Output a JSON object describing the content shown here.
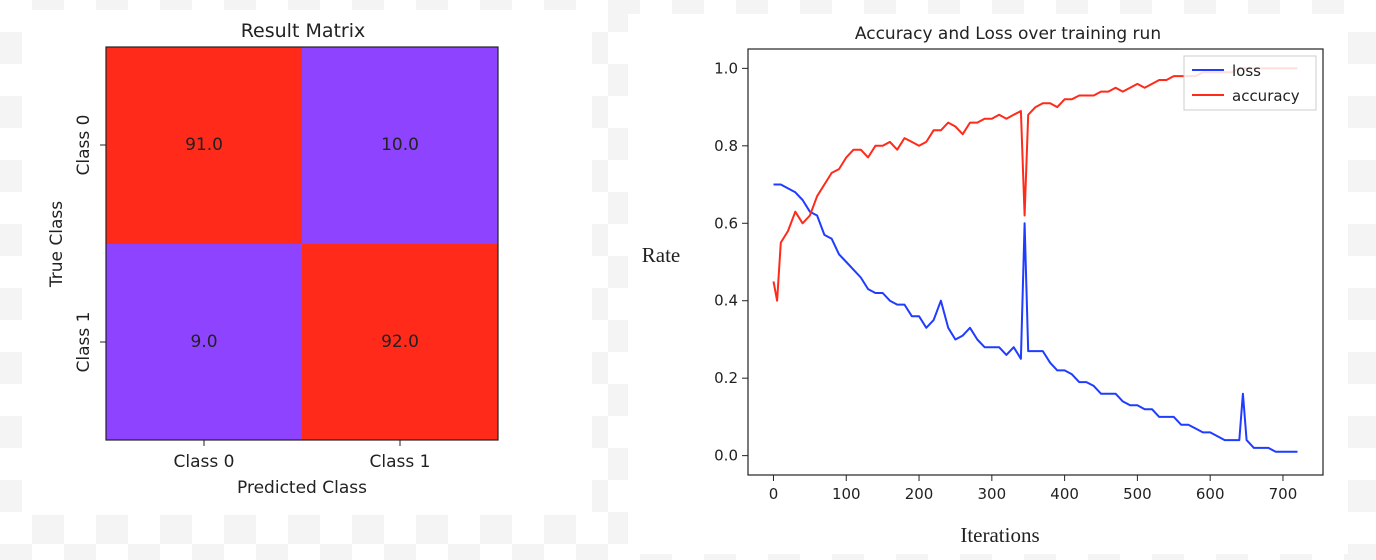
{
  "confusion_matrix": {
    "title": "Result Matrix",
    "xlabel": "Predicted Class",
    "ylabel": "True Class",
    "col_labels": [
      "Class 0",
      "Class 1"
    ],
    "row_labels": [
      "Class 0",
      "Class 1"
    ],
    "cells": [
      [
        "91.0",
        "10.0"
      ],
      [
        "9.0",
        "92.0"
      ]
    ],
    "colors": {
      "high": "#ff2a1a",
      "low": "#8e44ff"
    }
  },
  "chart_data": {
    "type": "line",
    "title": "Accuracy and Loss over training run",
    "xlabel": "Iterations",
    "ylabel": "Rate",
    "xlim": [
      -35,
      755
    ],
    "ylim": [
      -0.05,
      1.05
    ],
    "xticks": [
      "0",
      "100",
      "200",
      "300",
      "400",
      "500",
      "600",
      "700"
    ],
    "yticks": [
      "0.0",
      "0.2",
      "0.4",
      "0.6",
      "0.8",
      "1.0"
    ],
    "legend": {
      "position": "top-right",
      "items": [
        "loss",
        "accuracy"
      ]
    },
    "series": [
      {
        "name": "loss",
        "color": "#1f3cff",
        "x": [
          0,
          10,
          20,
          30,
          40,
          50,
          60,
          70,
          80,
          90,
          100,
          110,
          120,
          130,
          140,
          150,
          160,
          170,
          180,
          190,
          200,
          210,
          220,
          230,
          240,
          250,
          260,
          270,
          280,
          290,
          300,
          310,
          320,
          330,
          340,
          345,
          350,
          360,
          370,
          380,
          390,
          400,
          410,
          420,
          430,
          440,
          450,
          460,
          470,
          480,
          490,
          500,
          510,
          520,
          530,
          540,
          550,
          560,
          570,
          580,
          590,
          600,
          610,
          620,
          630,
          640,
          645,
          650,
          660,
          670,
          680,
          690,
          700,
          710,
          720
        ],
        "y": [
          0.7,
          0.7,
          0.69,
          0.68,
          0.66,
          0.63,
          0.62,
          0.57,
          0.56,
          0.52,
          0.5,
          0.48,
          0.46,
          0.43,
          0.42,
          0.42,
          0.4,
          0.39,
          0.39,
          0.36,
          0.36,
          0.33,
          0.35,
          0.4,
          0.33,
          0.3,
          0.31,
          0.33,
          0.3,
          0.28,
          0.28,
          0.28,
          0.26,
          0.28,
          0.25,
          0.6,
          0.27,
          0.27,
          0.27,
          0.24,
          0.22,
          0.22,
          0.21,
          0.19,
          0.19,
          0.18,
          0.16,
          0.16,
          0.16,
          0.14,
          0.13,
          0.13,
          0.12,
          0.12,
          0.1,
          0.1,
          0.1,
          0.08,
          0.08,
          0.07,
          0.06,
          0.06,
          0.05,
          0.04,
          0.04,
          0.04,
          0.16,
          0.04,
          0.02,
          0.02,
          0.02,
          0.01,
          0.01,
          0.01,
          0.01
        ]
      },
      {
        "name": "accuracy",
        "color": "#ff2a1a",
        "x": [
          0,
          5,
          10,
          20,
          30,
          40,
          50,
          60,
          70,
          80,
          90,
          100,
          110,
          120,
          130,
          140,
          150,
          160,
          170,
          180,
          190,
          200,
          210,
          220,
          230,
          240,
          250,
          260,
          270,
          280,
          290,
          300,
          310,
          320,
          330,
          340,
          345,
          350,
          360,
          370,
          380,
          390,
          400,
          410,
          420,
          430,
          440,
          450,
          460,
          470,
          480,
          490,
          500,
          510,
          520,
          530,
          540,
          550,
          560,
          570,
          580,
          590,
          600,
          610,
          620,
          630,
          640,
          650,
          660,
          670,
          680,
          690,
          700,
          710,
          720
        ],
        "y": [
          0.45,
          0.4,
          0.55,
          0.58,
          0.63,
          0.6,
          0.62,
          0.67,
          0.7,
          0.73,
          0.74,
          0.77,
          0.79,
          0.79,
          0.77,
          0.8,
          0.8,
          0.81,
          0.79,
          0.82,
          0.81,
          0.8,
          0.81,
          0.84,
          0.84,
          0.86,
          0.85,
          0.83,
          0.86,
          0.86,
          0.87,
          0.87,
          0.88,
          0.87,
          0.88,
          0.89,
          0.62,
          0.88,
          0.9,
          0.91,
          0.91,
          0.9,
          0.92,
          0.92,
          0.93,
          0.93,
          0.93,
          0.94,
          0.94,
          0.95,
          0.94,
          0.95,
          0.96,
          0.95,
          0.96,
          0.97,
          0.97,
          0.98,
          0.98,
          0.98,
          0.98,
          0.99,
          0.99,
          0.99,
          0.99,
          0.99,
          1.0,
          1.0,
          1.0,
          1.0,
          1.0,
          1.0,
          1.0,
          1.0,
          1.0
        ]
      }
    ]
  }
}
